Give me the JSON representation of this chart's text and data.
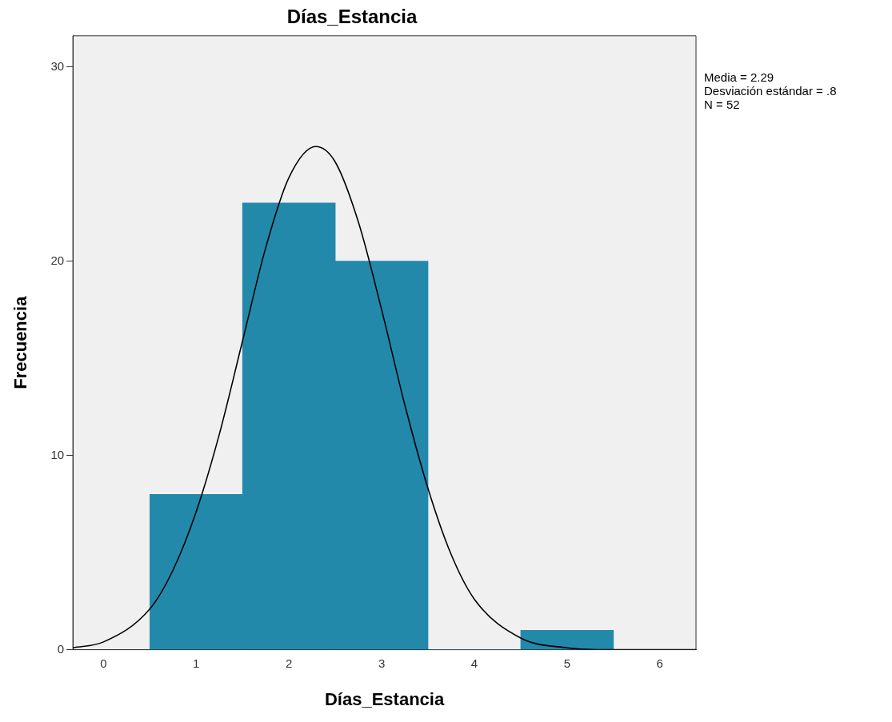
{
  "chart_data": {
    "type": "histogram",
    "title": "Días_Estancia",
    "xlabel": "Días_Estancia",
    "ylabel": "Frecuencia",
    "bins": [
      0.5,
      1.5,
      2.5,
      3.5,
      4.5,
      5.5
    ],
    "values": [
      8,
      23,
      20,
      0,
      1
    ],
    "color": "#2389ab",
    "series": [
      {
        "type": "line",
        "color": "#000000",
        "x": [
          -0.33,
          0,
          0.5,
          0.75,
          1,
          1.25,
          1.5,
          1.75,
          2,
          2.29,
          2.5,
          2.75,
          3,
          3.25,
          3.5,
          3.75,
          4,
          4.5,
          5,
          5.5,
          6.39
        ],
        "values": [
          0.1,
          0.4,
          2.1,
          4.1,
          7.1,
          11.1,
          15.9,
          20.7,
          24.3,
          25.9,
          25.1,
          22,
          17.5,
          12.6,
          8.3,
          4.9,
          2.6,
          0.6,
          0.1,
          0,
          0
        ]
      }
    ],
    "xlim": [
      -0.33,
      6.39
    ],
    "xticks": [
      0,
      1,
      2,
      3,
      4,
      5,
      6
    ],
    "ylim": [
      0,
      31.6
    ],
    "yticks": [
      0,
      10,
      20,
      30
    ],
    "grid": false,
    "legend": false,
    "annotations": [
      "Media = 2.29",
      "Desviación estándar = .8",
      "N = 52"
    ]
  }
}
